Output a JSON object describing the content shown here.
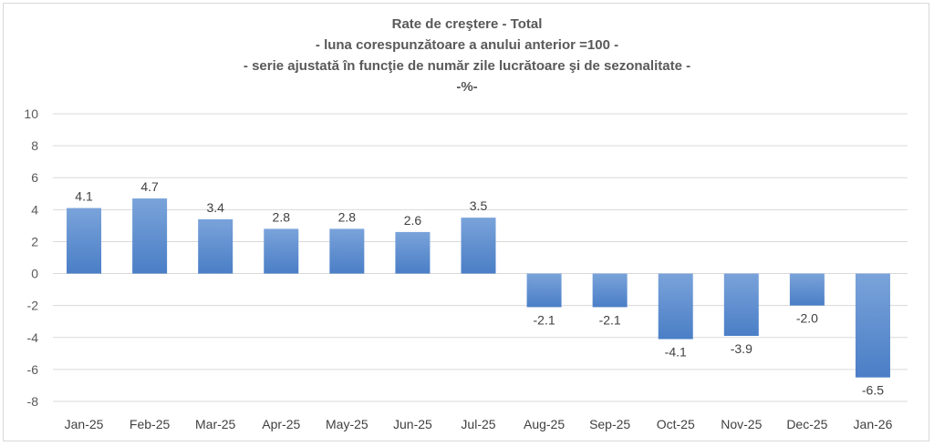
{
  "chart_data": {
    "type": "bar",
    "title_lines": [
      "Rate de creştere - Total",
      "- luna corespunzătoare a anului anterior =100 -",
      "- serie ajustată în funcţie de număr zile lucrătoare şi de sezonalitate -",
      "-%-"
    ],
    "categories": [
      "Jan-25",
      "Feb-25",
      "Mar-25",
      "Apr-25",
      "May-25",
      "Jun-25",
      "Jul-25",
      "Aug-25",
      "Sep-25",
      "Oct-25",
      "Nov-25",
      "Dec-25",
      "Jan-26"
    ],
    "values": [
      4.1,
      4.7,
      3.4,
      2.8,
      2.8,
      2.6,
      3.5,
      -2.1,
      -2.1,
      -4.1,
      -3.9,
      -2.0,
      -6.5
    ],
    "data_labels": [
      "4.1",
      "4.7",
      "3.4",
      "2.8",
      "2.8",
      "2.6",
      "3.5",
      "-2.1",
      "-2.1",
      "-4.1",
      "-3.9",
      "-2.0",
      "-6.5"
    ],
    "ylim": [
      -8,
      10
    ],
    "yticks": [
      "10",
      "8",
      "6",
      "4",
      "2",
      "0",
      "-2",
      "-4",
      "-6",
      "-8"
    ],
    "grid": true,
    "bar_color": "#5b8fd2",
    "xlabel": "",
    "ylabel": ""
  }
}
